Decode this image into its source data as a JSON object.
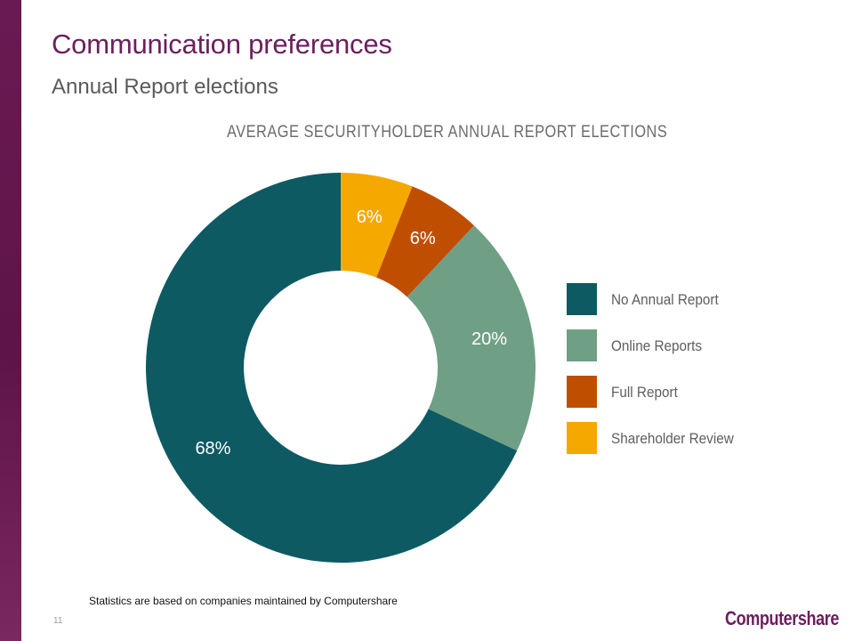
{
  "slide": {
    "title": "Communication preferences",
    "subtitle": "Annual Report elections",
    "footnote": "Statistics are based on companies maintained by Computershare",
    "page_number": "11",
    "logo_text": "Computershare"
  },
  "colors": {
    "accent": "#6b1f5c",
    "side_bar": "#5e1448"
  },
  "chart_data": {
    "type": "pie",
    "title": "AVERAGE SECURITYHOLDER ANNUAL REPORT ELECTIONS",
    "donut": true,
    "legend_position": "right",
    "slices": [
      {
        "name": "Shareholder Review",
        "value": 6,
        "label": "6%",
        "color": "#f5a800"
      },
      {
        "name": "Full Report",
        "value": 6,
        "label": "6%",
        "color": "#c04e00"
      },
      {
        "name": "Online Reports",
        "value": 20,
        "label": "20%",
        "color": "#6fa085"
      },
      {
        "name": "No Annual Report",
        "value": 68,
        "label": "68%",
        "color": "#0e5a63"
      }
    ],
    "legend": [
      {
        "label": "No Annual Report",
        "color": "#0e5a63"
      },
      {
        "label": "Online Reports",
        "color": "#6fa085"
      },
      {
        "label": "Full Report",
        "color": "#c04e00"
      },
      {
        "label": "Shareholder Review",
        "color": "#f5a800"
      }
    ]
  }
}
